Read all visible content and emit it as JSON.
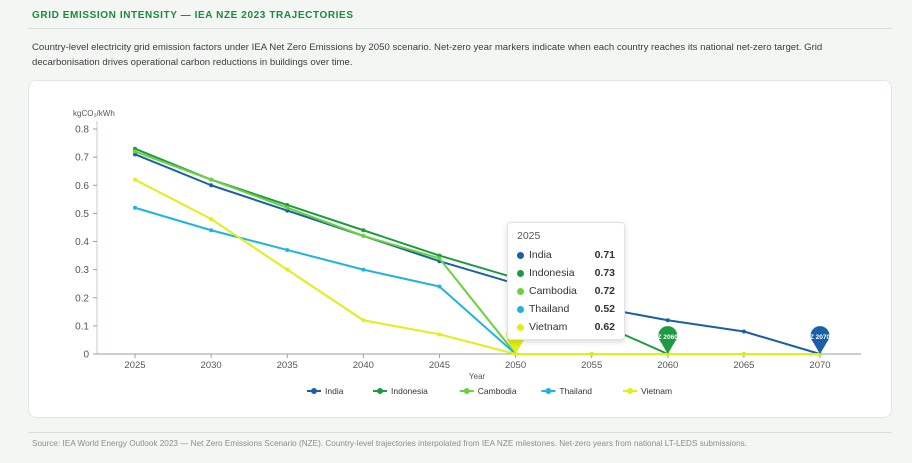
{
  "header": {
    "title": "GRID EMISSION INTENSITY — IEA NZE 2023 TRAJECTORIES",
    "description": "Country-level electricity grid emission factors under IEA Net Zero Emissions by 2050 scenario. Net-zero year markers indicate when each country reaches its national net-zero target. Grid decarbonisation drives operational carbon reductions in buildings over time."
  },
  "footer": {
    "source": "Source: IEA World Energy Outlook 2023 — Net Zero Emissions Scenario (NZE). Country-level trajectories interpolated from IEA NZE milestones. Net-zero years from national LT-LEDS submissions."
  },
  "chart_data": {
    "type": "line",
    "title": "",
    "xlabel": "Year",
    "ylabel": "kgCO₂/kWh",
    "x": [
      2025,
      2030,
      2035,
      2040,
      2045,
      2050,
      2055,
      2060,
      2065,
      2070
    ],
    "x_tick_labels": [
      "2025",
      "2030",
      "2035",
      "2040",
      "2045",
      "2050",
      "2055",
      "2060",
      "2065",
      "2070"
    ],
    "y_ticks": [
      "0",
      "0.1",
      "0.2",
      "0.3",
      "0.4",
      "0.5",
      "0.6",
      "0.7",
      "0.8"
    ],
    "ylim": [
      0,
      0.8
    ],
    "grid": false,
    "legend_position": "bottom",
    "series": [
      {
        "name": "India",
        "color": "#1a5fa8",
        "values": [
          0.71,
          0.6,
          0.51,
          0.42,
          0.33,
          0.25,
          0.17,
          0.12,
          0.08,
          0.0
        ],
        "net_zero_year": 2070,
        "net_zero_label": "Z 2070"
      },
      {
        "name": "Indonesia",
        "color": "#1e9a42",
        "values": [
          0.73,
          0.62,
          0.53,
          0.44,
          0.35,
          0.27,
          0.12,
          0.0,
          0.0,
          0.0
        ],
        "net_zero_year": 2060,
        "net_zero_label": "Z 2060"
      },
      {
        "name": "Cambodia",
        "color": "#6bd23b",
        "values": [
          0.72,
          0.62,
          0.52,
          0.42,
          0.34,
          0.0,
          0.0,
          0.0,
          0.0,
          0.0
        ],
        "net_zero_year": 2050,
        "net_zero_label": "Z 2050"
      },
      {
        "name": "Thailand",
        "color": "#1fb4e0",
        "values": [
          0.52,
          0.44,
          0.37,
          0.3,
          0.24,
          0.0,
          0.0,
          0.0,
          0.0,
          0.0
        ],
        "net_zero_year": null,
        "net_zero_label": ""
      },
      {
        "name": "Vietnam",
        "color": "#e2ee14",
        "values": [
          0.62,
          0.48,
          0.3,
          0.12,
          0.07,
          0.0,
          0.0,
          0.0,
          0.0,
          0.0
        ],
        "net_zero_year": 2050,
        "net_zero_label": "Z 2050"
      }
    ],
    "tooltip": {
      "title": "2025",
      "rows": [
        {
          "name": "India",
          "value": "0.71",
          "color": "#1a5fa8"
        },
        {
          "name": "Indonesia",
          "value": "0.73",
          "color": "#1e9a42"
        },
        {
          "name": "Cambodia",
          "value": "0.72",
          "color": "#6bd23b"
        },
        {
          "name": "Thailand",
          "value": "0.52",
          "color": "#1fb4e0"
        },
        {
          "name": "Vietnam",
          "value": "0.62",
          "color": "#e2ee14"
        }
      ]
    }
  }
}
